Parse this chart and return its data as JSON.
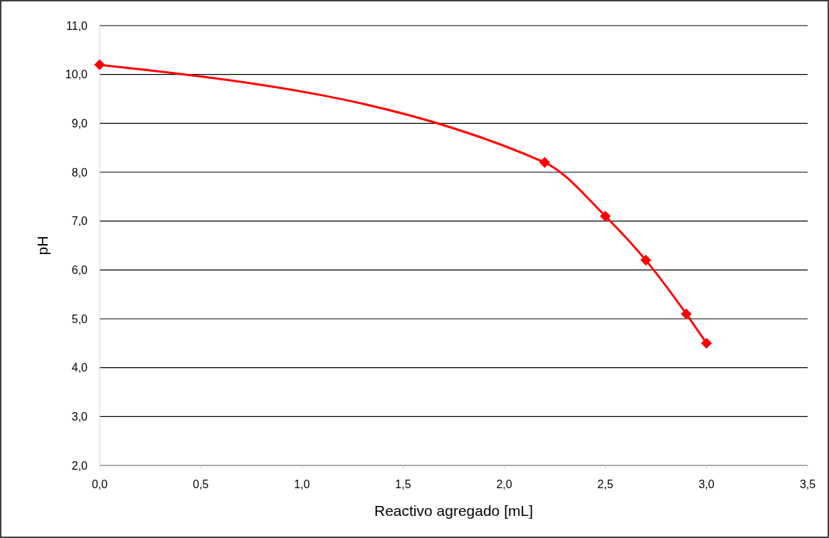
{
  "chart_data": {
    "type": "line",
    "xlabel": "Reactivo agregado [mL]",
    "ylabel": "pH",
    "x": [
      0,
      2.2,
      2.5,
      2.7,
      2.9,
      3.0
    ],
    "series": [
      {
        "color": "#ff0000",
        "values": [
          10.2,
          8.2,
          7.1,
          6.2,
          5.1,
          4.5
        ]
      }
    ],
    "xlim": [
      0,
      3.5
    ],
    "xticks": [
      {
        "value": 0,
        "label": "0,0"
      },
      {
        "value": 0.5,
        "label": "0,5"
      },
      {
        "value": 1,
        "label": "1,0"
      },
      {
        "value": 1.5,
        "label": "1,5"
      },
      {
        "value": 2,
        "label": "2,0"
      },
      {
        "value": 2.5,
        "label": "2,5"
      },
      {
        "value": 3,
        "label": "3,0"
      },
      {
        "value": 3.5,
        "label": "3,5"
      }
    ],
    "ylim": [
      2,
      11
    ],
    "yticks": [
      {
        "value": 2,
        "label": "2,0"
      },
      {
        "value": 3,
        "label": "3,0"
      },
      {
        "value": 4,
        "label": "4,0"
      },
      {
        "value": 5,
        "label": "5,0"
      },
      {
        "value": 6,
        "label": "6,0"
      },
      {
        "value": 7,
        "label": "7,0"
      },
      {
        "value": 8,
        "label": "8,0"
      },
      {
        "value": 9,
        "label": "9,0"
      },
      {
        "value": 10,
        "label": "10,0"
      },
      {
        "value": 11,
        "label": "11,0"
      }
    ],
    "grid": "y",
    "marker": "diamond",
    "line_style": "solid"
  }
}
